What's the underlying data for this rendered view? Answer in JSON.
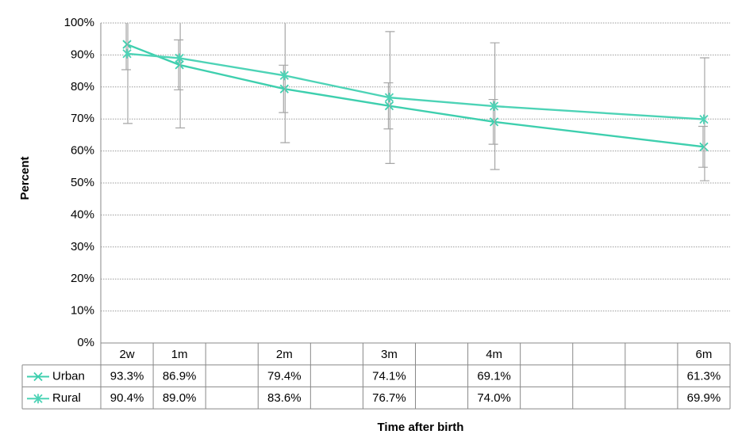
{
  "chart_data": {
    "type": "line",
    "x_label": "Time after birth",
    "y_label": "Percent",
    "categories": [
      "2w",
      "1m",
      null,
      "2m",
      null,
      "3m",
      null,
      "4m",
      null,
      null,
      null,
      "6m"
    ],
    "series": [
      {
        "name": "Urban",
        "color": "#3ecfae",
        "marker": "x",
        "values": [
          93.3,
          86.9,
          null,
          79.4,
          null,
          74.1,
          null,
          69.1,
          null,
          null,
          null,
          61.3
        ],
        "value_labels": [
          "93.3%",
          "86.9%",
          null,
          "79.4%",
          null,
          "74.1%",
          null,
          "69.1%",
          null,
          null,
          null,
          "61.3%"
        ],
        "errors": [
          7.9,
          7.8,
          null,
          7.4,
          null,
          7.2,
          null,
          7.0,
          null,
          null,
          null,
          6.4
        ]
      },
      {
        "name": "Rural",
        "color": "#4dd3b6",
        "marker": "asterisk",
        "values": [
          90.4,
          89.0,
          null,
          83.6,
          null,
          76.7,
          null,
          74.0,
          null,
          null,
          null,
          69.9
        ],
        "value_labels": [
          "90.4%",
          "89.0%",
          null,
          "83.6%",
          null,
          "76.7%",
          null,
          "74.0%",
          null,
          null,
          null,
          "69.9%"
        ],
        "errors": [
          21.8,
          21.8,
          null,
          21.0,
          null,
          20.6,
          null,
          19.8,
          null,
          null,
          null,
          19.2
        ]
      }
    ],
    "error_bar_color": "#a6a6a6",
    "ylim": [
      0,
      100
    ],
    "yticks": [
      {
        "value": 0,
        "label": "0%"
      },
      {
        "value": 10,
        "label": "10%"
      },
      {
        "value": 20,
        "label": "20%"
      },
      {
        "value": 30,
        "label": "30%"
      },
      {
        "value": 40,
        "label": "40%"
      },
      {
        "value": 50,
        "label": "50%"
      },
      {
        "value": 60,
        "label": "60%"
      },
      {
        "value": 70,
        "label": "70%"
      },
      {
        "value": 80,
        "label": "80%"
      },
      {
        "value": 90,
        "label": "90%"
      },
      {
        "value": 100,
        "label": "100%"
      }
    ],
    "grid": true,
    "data_table": true
  }
}
